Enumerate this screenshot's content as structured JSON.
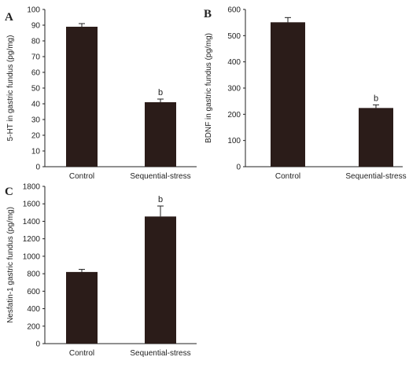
{
  "colors": {
    "bar": "#2b1c19",
    "axis": "#222222",
    "error": "#222222"
  },
  "chart_data": [
    {
      "type": "bar",
      "panel_label": "A",
      "categories": [
        "Control",
        "Sequential-stress"
      ],
      "values": [
        89,
        41
      ],
      "errors": [
        2,
        2
      ],
      "annotations": [
        "",
        "b"
      ],
      "ylabel": "5-HT in gastric fundus (pg/mg)",
      "xlabel": "",
      "ylim": [
        0,
        100
      ],
      "yticks": [
        0,
        10,
        20,
        30,
        40,
        50,
        60,
        70,
        80,
        90,
        100
      ],
      "grid": false
    },
    {
      "type": "bar",
      "panel_label": "B",
      "categories": [
        "Control",
        "Sequential-stress"
      ],
      "values": [
        551,
        224
      ],
      "errors": [
        18,
        12
      ],
      "annotations": [
        "",
        "b"
      ],
      "ylabel": "BDNF in gastric fundus (pg/mg)",
      "xlabel": "",
      "ylim": [
        0,
        600
      ],
      "yticks": [
        0,
        100,
        200,
        300,
        400,
        500,
        600
      ],
      "grid": false
    },
    {
      "type": "bar",
      "panel_label": "C",
      "categories": [
        "Control",
        "Sequential-stress"
      ],
      "values": [
        820,
        1455
      ],
      "errors": [
        30,
        120
      ],
      "annotations": [
        "",
        "b"
      ],
      "ylabel": "Nesfatin-1 gastric fundus (pg/mg)",
      "xlabel": "",
      "ylim": [
        0,
        1800
      ],
      "yticks": [
        0,
        200,
        400,
        600,
        800,
        1000,
        1200,
        1400,
        1600,
        1800
      ],
      "grid": false
    }
  ]
}
